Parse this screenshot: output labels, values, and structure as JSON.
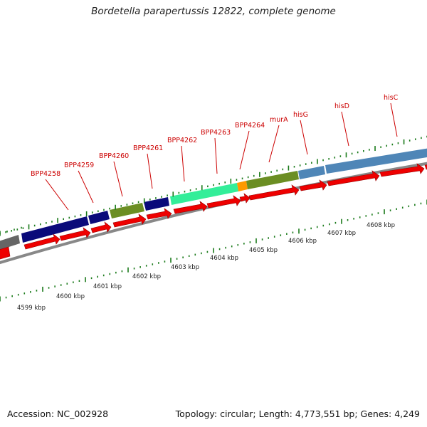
{
  "title": "Bordetella parapertussis 12822, complete genome",
  "footer": {
    "accession": "Accession: NC_002928",
    "topology": "Topology: circular; Length: 4,773,551 bp; Genes: 4,249"
  },
  "scale_labels": [
    "4599 kbp",
    "4600 kbp",
    "4601 kbp",
    "4602 kbp",
    "4603 kbp",
    "4604 kbp",
    "4605 kbp",
    "4606 kbp",
    "4607 kbp",
    "4608 kbp"
  ],
  "gene_labels": [
    "BPP4258",
    "BPP4259",
    "BPP4260",
    "BPP4261",
    "BPP4262",
    "BPP4263",
    "BPP4264",
    "murA",
    "hisG",
    "hisD",
    "hisC"
  ],
  "colors": {
    "label": "#cc0000",
    "tick": "#1a7a1a",
    "cds_arrow": "#ee0000",
    "backbone": "#888888",
    "navy": "#0a0a7a",
    "olive": "#6b8e23",
    "mint": "#33ee99",
    "orange": "#ff9900",
    "steel": "#4f86b7",
    "gray": "#666666"
  }
}
